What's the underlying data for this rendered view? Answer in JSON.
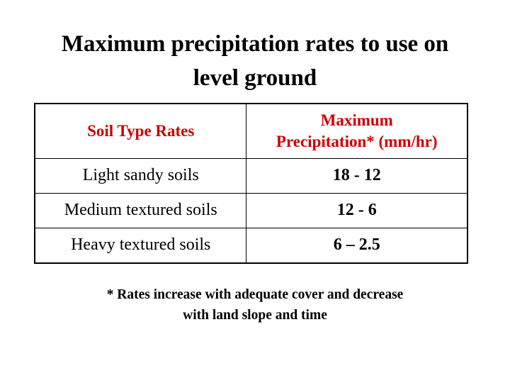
{
  "title": {
    "line1": "Maximum precipitation rates to use on",
    "line2": "level ground"
  },
  "table": {
    "header": {
      "col1": "Soil Type Rates",
      "col2_line1": "Maximum",
      "col2_line2": "Precipitation* (mm/hr)"
    },
    "rows": [
      {
        "soil": "Light sandy soils",
        "rate": "18 - 12"
      },
      {
        "soil": "Medium textured soils",
        "rate": "12 - 6"
      },
      {
        "soil": "Heavy textured soils",
        "rate": "6 – 2.5"
      }
    ]
  },
  "footnote": {
    "line1": "* Rates increase with adequate cover and decrease",
    "line2": "with land slope and time"
  },
  "colors": {
    "header_text": "#cc0000",
    "body_text": "#000000",
    "background": "#ffffff"
  }
}
